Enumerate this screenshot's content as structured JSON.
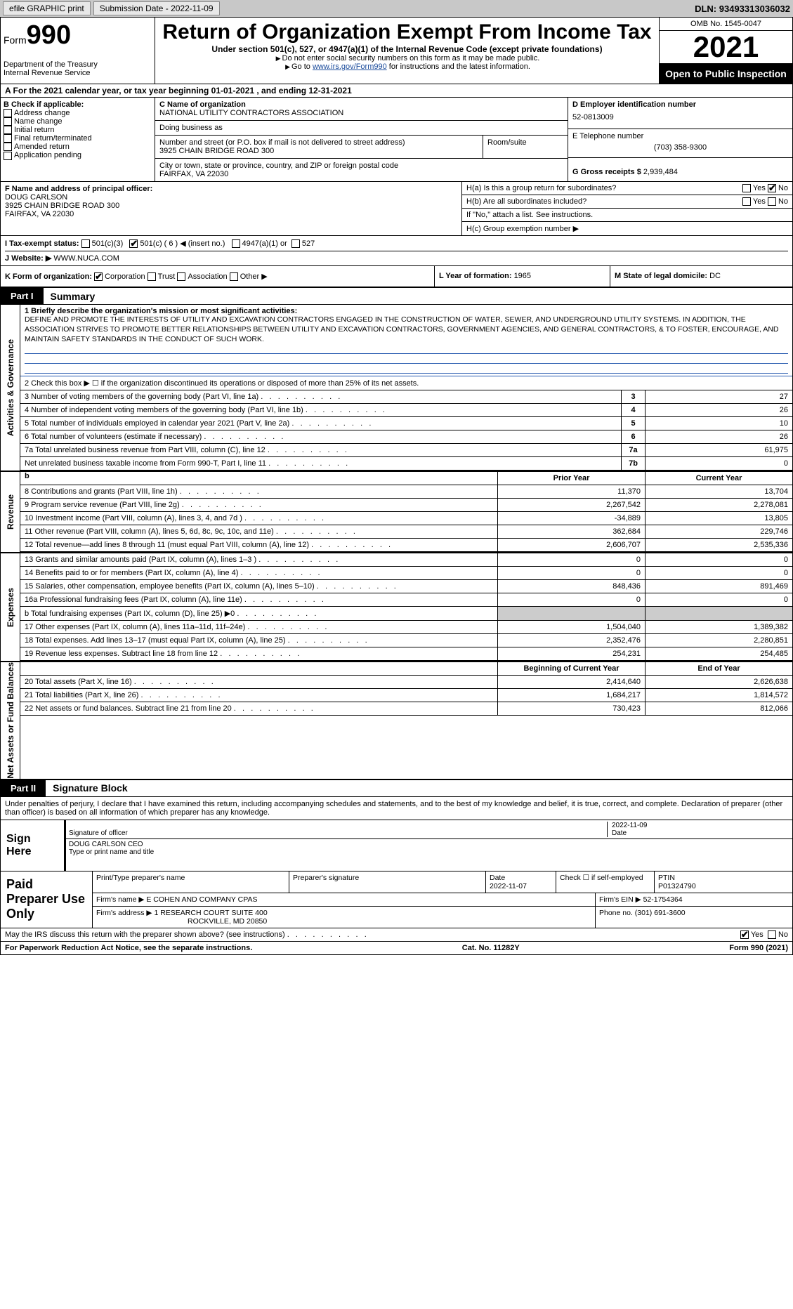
{
  "topbar": {
    "efile": "efile GRAPHIC print",
    "submission_label": "Submission Date - ",
    "submission_date": "2022-11-09",
    "dln_label": "DLN: ",
    "dln": "93493313036032"
  },
  "header": {
    "form_word": "Form",
    "form_num": "990",
    "dept": "Department of the Treasury\nInternal Revenue Service",
    "title": "Return of Organization Exempt From Income Tax",
    "sub": "Under section 501(c), 527, or 4947(a)(1) of the Internal Revenue Code (except private foundations)",
    "note1": "Do not enter social security numbers on this form as it may be made public.",
    "note2_pre": "Go to ",
    "note2_link": "www.irs.gov/Form990",
    "note2_post": " for instructions and the latest information.",
    "omb": "OMB No. 1545-0047",
    "year": "2021",
    "open": "Open to Public Inspection"
  },
  "row_a": "A For the 2021 calendar year, or tax year beginning 01-01-2021   , and ending 12-31-2021",
  "section_b": {
    "hdr": "B Check if applicable:",
    "opts": [
      "Address change",
      "Name change",
      "Initial return",
      "Final return/terminated",
      "Amended return",
      "Application pending"
    ]
  },
  "section_c": {
    "name_label": "C Name of organization",
    "name": "NATIONAL UTILITY CONTRACTORS ASSOCIATION",
    "dba_label": "Doing business as",
    "dba": "",
    "street_label": "Number and street (or P.O. box if mail is not delivered to street address)",
    "street": "3925 CHAIN BRIDGE ROAD 300",
    "room_label": "Room/suite",
    "city_label": "City or town, state or province, country, and ZIP or foreign postal code",
    "city": "FAIRFAX, VA  22030"
  },
  "section_d": {
    "ein_label": "D Employer identification number",
    "ein": "52-0813009",
    "tel_label": "E Telephone number",
    "tel": "(703) 358-9300",
    "gross_label": "G Gross receipts $ ",
    "gross": "2,939,484"
  },
  "section_f": {
    "label": "F  Name and address of principal officer:",
    "name": "DOUG CARLSON",
    "addr1": "3925 CHAIN BRIDGE ROAD 300",
    "addr2": "FAIRFAX, VA  22030"
  },
  "section_h": {
    "ha": "H(a)  Is this a group return for subordinates?",
    "hb": "H(b)  Are all subordinates included?",
    "hb_note": "If \"No,\" attach a list. See instructions.",
    "hc": "H(c)  Group exemption number ▶",
    "yes": "Yes",
    "no": "No"
  },
  "row_i": {
    "label": "I   Tax-exempt status:",
    "o1": "501(c)(3)",
    "o2": "501(c) ( 6 ) ◀ (insert no.)",
    "o3": "4947(a)(1) or",
    "o4": "527"
  },
  "row_j": {
    "label": "J   Website: ▶",
    "val": "  WWW.NUCA.COM"
  },
  "row_k": {
    "label": "K Form of organization:",
    "o1": "Corporation",
    "o2": "Trust",
    "o3": "Association",
    "o4": "Other ▶",
    "l_label": "L Year of formation: ",
    "l_val": "1965",
    "m_label": "M State of legal domicile: ",
    "m_val": "DC"
  },
  "part1": {
    "part": "Part I",
    "title": "Summary",
    "tab_gov": "Activities & Governance",
    "tab_rev": "Revenue",
    "tab_exp": "Expenses",
    "tab_net": "Net Assets or Fund Balances",
    "line1_label": "1  Briefly describe the organization's mission or most significant activities:",
    "mission": "DEFINE AND PROMOTE THE INTERESTS OF UTILITY AND EXCAVATION CONTRACTORS ENGAGED IN THE CONSTRUCTION OF WATER, SEWER, AND UNDERGROUND UTILITY SYSTEMS. IN ADDITION, THE ASSOCIATION STRIVES TO PROMOTE BETTER RELATIONSHIPS BETWEEN UTILITY AND EXCAVATION CONTRACTORS, GOVERNMENT AGENCIES, AND GENERAL CONTRACTORS, & TO FOSTER, ENCOURAGE, AND MAINTAIN SAFETY STANDARDS IN THE CONDUCT OF SUCH WORK.",
    "line2": "2    Check this box ▶ ☐  if the organization discontinued its operations or disposed of more than 25% of its net assets.",
    "gov_lines": [
      {
        "n": "3",
        "label": "3    Number of voting members of the governing body (Part VI, line 1a)",
        "val": "27"
      },
      {
        "n": "4",
        "label": "4    Number of independent voting members of the governing body (Part VI, line 1b)",
        "val": "26"
      },
      {
        "n": "5",
        "label": "5    Total number of individuals employed in calendar year 2021 (Part V, line 2a)",
        "val": "10"
      },
      {
        "n": "6",
        "label": "6    Total number of volunteers (estimate if necessary)",
        "val": "26"
      },
      {
        "n": "7a",
        "label": "7a  Total unrelated business revenue from Part VIII, column (C), line 12",
        "val": "61,975"
      },
      {
        "n": "7b",
        "label": "      Net unrelated business taxable income from Form 990-T, Part I, line 11",
        "val": "0"
      }
    ],
    "hdr_prior": "Prior Year",
    "hdr_curr": "Current Year",
    "b_hdr": "b",
    "rev_lines": [
      {
        "label": "8    Contributions and grants (Part VIII, line 1h)",
        "c1": "11,370",
        "c2": "13,704"
      },
      {
        "label": "9    Program service revenue (Part VIII, line 2g)",
        "c1": "2,267,542",
        "c2": "2,278,081"
      },
      {
        "label": "10  Investment income (Part VIII, column (A), lines 3, 4, and 7d )",
        "c1": "-34,889",
        "c2": "13,805"
      },
      {
        "label": "11  Other revenue (Part VIII, column (A), lines 5, 6d, 8c, 9c, 10c, and 11e)",
        "c1": "362,684",
        "c2": "229,746"
      },
      {
        "label": "12  Total revenue—add lines 8 through 11 (must equal Part VIII, column (A), line 12)",
        "c1": "2,606,707",
        "c2": "2,535,336"
      }
    ],
    "exp_lines": [
      {
        "label": "13  Grants and similar amounts paid (Part IX, column (A), lines 1–3 )",
        "c1": "0",
        "c2": "0"
      },
      {
        "label": "14  Benefits paid to or for members (Part IX, column (A), line 4)",
        "c1": "0",
        "c2": "0"
      },
      {
        "label": "15  Salaries, other compensation, employee benefits (Part IX, column (A), lines 5–10)",
        "c1": "848,436",
        "c2": "891,469"
      },
      {
        "label": "16a Professional fundraising fees (Part IX, column (A), line 11e)",
        "c1": "0",
        "c2": "0"
      },
      {
        "label": "  b  Total fundraising expenses (Part IX, column (D), line 25) ▶0",
        "c1": "",
        "c2": "",
        "shaded": true
      },
      {
        "label": "17  Other expenses (Part IX, column (A), lines 11a–11d, 11f–24e)",
        "c1": "1,504,040",
        "c2": "1,389,382"
      },
      {
        "label": "18  Total expenses. Add lines 13–17 (must equal Part IX, column (A), line 25)",
        "c1": "2,352,476",
        "c2": "2,280,851"
      },
      {
        "label": "19  Revenue less expenses. Subtract line 18 from line 12",
        "c1": "254,231",
        "c2": "254,485"
      }
    ],
    "hdr_begin": "Beginning of Current Year",
    "hdr_end": "End of Year",
    "net_lines": [
      {
        "label": "20  Total assets (Part X, line 16)",
        "c1": "2,414,640",
        "c2": "2,626,638"
      },
      {
        "label": "21  Total liabilities (Part X, line 26)",
        "c1": "1,684,217",
        "c2": "1,814,572"
      },
      {
        "label": "22  Net assets or fund balances. Subtract line 21 from line 20",
        "c1": "730,423",
        "c2": "812,066"
      }
    ]
  },
  "part2": {
    "part": "Part II",
    "title": "Signature Block",
    "intro": "Under penalties of perjury, I declare that I have examined this return, including accompanying schedules and statements, and to the best of my knowledge and belief, it is true, correct, and complete. Declaration of preparer (other than officer) is based on all information of which preparer has any knowledge.",
    "sign_here": "Sign Here",
    "sig_officer": "Signature of officer",
    "sig_date": "2022-11-09",
    "date_lbl": "Date",
    "officer_name": "DOUG CARLSON CEO",
    "type_name": "Type or print name and title",
    "paid": "Paid Preparer Use Only",
    "prep_hdr_name": "Print/Type preparer's name",
    "prep_hdr_sig": "Preparer's signature",
    "prep_hdr_date": "Date",
    "prep_date": "2022-11-07",
    "prep_self": "Check ☐ if self-employed",
    "ptin_lbl": "PTIN",
    "ptin": "P01324790",
    "firm_name_lbl": "Firm's name    ▶ ",
    "firm_name": "E COHEN AND COMPANY CPAS",
    "firm_ein_lbl": "Firm's EIN ▶ ",
    "firm_ein": "52-1754364",
    "firm_addr_lbl": "Firm's address ▶ ",
    "firm_addr1": "1 RESEARCH COURT SUITE 400",
    "firm_addr2": "ROCKVILLE, MD  20850",
    "phone_lbl": "Phone no. ",
    "phone": "(301) 691-3600",
    "discuss": "May the IRS discuss this return with the preparer shown above? (see instructions)",
    "yes": "Yes",
    "no": "No"
  },
  "footer": {
    "pra": "For Paperwork Reduction Act Notice, see the separate instructions.",
    "cat": "Cat. No. 11282Y",
    "form": "Form 990 (2021)"
  }
}
